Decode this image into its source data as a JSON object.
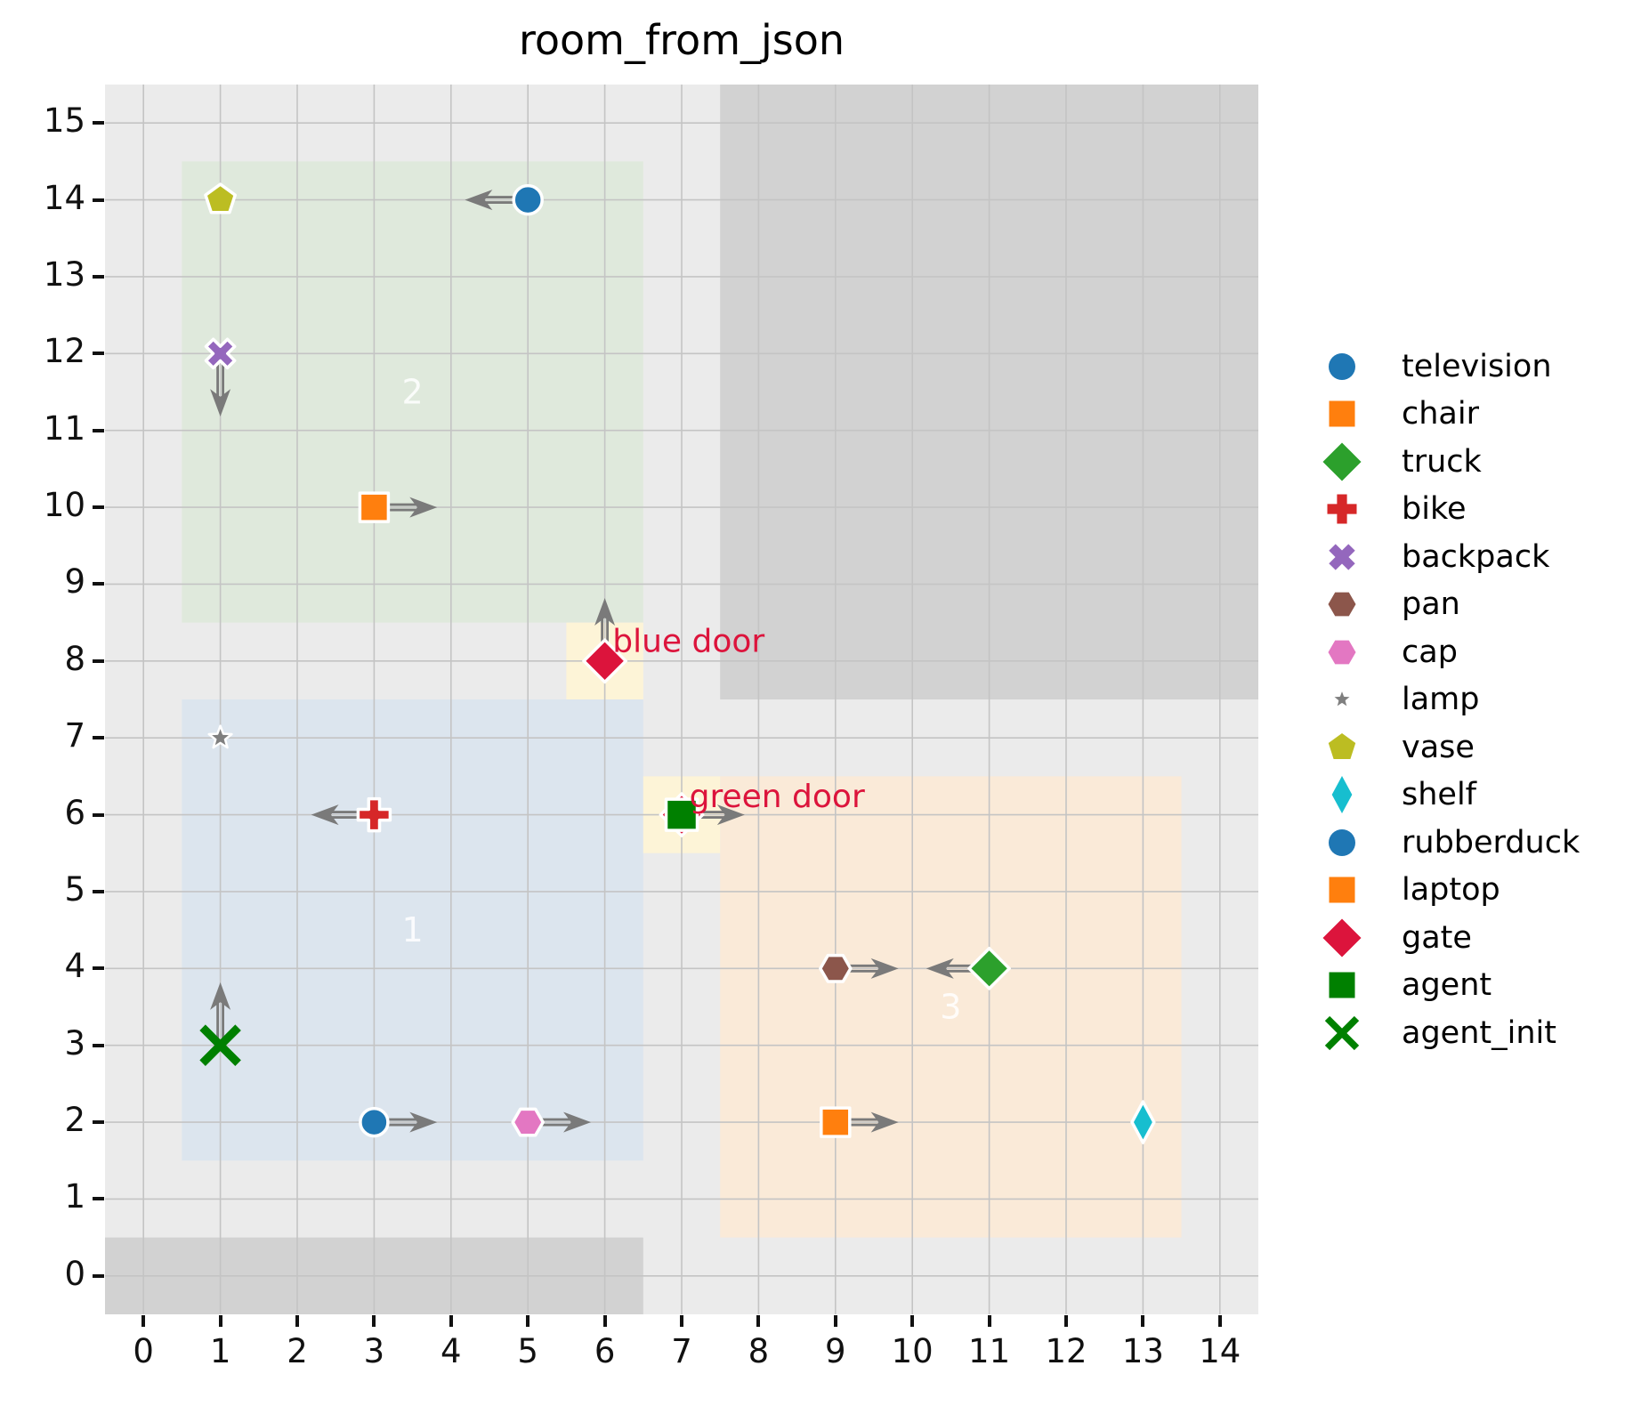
{
  "title": "room_from_json",
  "style": {
    "plot_bg": "#ebebeb",
    "wall_color": "#d2d2d2",
    "grid_color": "#c4c4c4",
    "arrow_color": "#7a7a7a",
    "door_label_color": "#dc143c",
    "room_label_color": "rgba(255,255,255,0.85)",
    "tick_color": "#111111"
  },
  "chart_data": {
    "type": "scatter",
    "title": "room_from_json",
    "xlim": [
      -0.5,
      14.5
    ],
    "ylim": [
      -0.5,
      15.5
    ],
    "x_ticks": [
      0,
      1,
      2,
      3,
      4,
      5,
      6,
      7,
      8,
      9,
      10,
      11,
      12,
      13,
      14
    ],
    "y_ticks": [
      0,
      1,
      2,
      3,
      4,
      5,
      6,
      7,
      8,
      9,
      10,
      11,
      12,
      13,
      14,
      15
    ],
    "grid": true,
    "legend_position": "right",
    "regions": [
      {
        "name": "wall-bottom-left",
        "x0": -0.5,
        "y0": -0.5,
        "x1": 6.5,
        "y1": 0.5,
        "color": "#d2d2d2"
      },
      {
        "name": "wall-top-right",
        "x0": 7.5,
        "y0": 7.5,
        "x1": 14.5,
        "y1": 15.5,
        "color": "#d2d2d2"
      },
      {
        "name": "room-2",
        "x0": 0.5,
        "y0": 8.5,
        "x1": 6.5,
        "y1": 14.5,
        "color": "#dfe9dc",
        "label": "2",
        "label_x": 3.5,
        "label_y": 11.5
      },
      {
        "name": "room-1",
        "x0": 0.5,
        "y0": 1.5,
        "x1": 6.5,
        "y1": 7.5,
        "color": "#dce5ee",
        "label": "1",
        "label_x": 3.5,
        "label_y": 4.5
      },
      {
        "name": "room-3",
        "x0": 7.5,
        "y0": 0.5,
        "x1": 13.5,
        "y1": 6.5,
        "color": "#faead8",
        "label": "3",
        "label_x": 10.5,
        "label_y": 3.5
      },
      {
        "name": "door-highlight-blue",
        "x0": 5.5,
        "y0": 7.5,
        "x1": 6.5,
        "y1": 8.5,
        "color": "#fdf4d7"
      },
      {
        "name": "door-highlight-green",
        "x0": 6.5,
        "y0": 5.5,
        "x1": 7.5,
        "y1": 6.5,
        "color": "#fdf4d7"
      }
    ],
    "points": [
      {
        "name": "vase",
        "x": 1,
        "y": 14,
        "marker": "pentagon",
        "color": "#bcbd22",
        "size": 35
      },
      {
        "name": "television",
        "x": 5,
        "y": 14,
        "marker": "circle",
        "color": "#1f77b4",
        "size": 32,
        "arrow": "left"
      },
      {
        "name": "backpack",
        "x": 1,
        "y": 12,
        "marker": "x_thick",
        "color": "#9467bd",
        "size": 34,
        "arrow": "down"
      },
      {
        "name": "chair",
        "x": 3,
        "y": 10,
        "marker": "square",
        "color": "#ff7f0e",
        "size": 32,
        "arrow": "right"
      },
      {
        "name": "gate",
        "x": 6,
        "y": 8,
        "marker": "diamond",
        "color": "#dc143c",
        "size": 45,
        "arrow": "up"
      },
      {
        "name": "lamp",
        "x": 1,
        "y": 7,
        "marker": "star",
        "color": "#7f7f7f",
        "size": 27
      },
      {
        "name": "bike",
        "x": 3,
        "y": 6,
        "marker": "plus",
        "color": "#d62728",
        "size": 36,
        "arrow": "left"
      },
      {
        "name": "gate",
        "x": 7,
        "y": 6,
        "marker": "diamond",
        "color": "#dc143c",
        "size": 45
      },
      {
        "name": "agent",
        "x": 7,
        "y": 6,
        "marker": "square",
        "color": "#008000",
        "size": 35,
        "arrow": "right"
      },
      {
        "name": "agent_init",
        "x": 1,
        "y": 3,
        "marker": "x_line",
        "color": "#008000",
        "size": 40,
        "arrow": "up"
      },
      {
        "name": "rubberduck",
        "x": 3,
        "y": 2,
        "marker": "circle",
        "color": "#1f77b4",
        "size": 31,
        "arrow": "right"
      },
      {
        "name": "cap",
        "x": 5,
        "y": 2,
        "marker": "hexagon",
        "color": "#e377c2",
        "size": 34,
        "arrow": "right"
      },
      {
        "name": "pan",
        "x": 9,
        "y": 4,
        "marker": "hexagon",
        "color": "#8c564b",
        "size": 34,
        "arrow": "right"
      },
      {
        "name": "truck",
        "x": 11,
        "y": 4,
        "marker": "diamond",
        "color": "#2ca02c",
        "size": 43,
        "arrow": "left"
      },
      {
        "name": "laptop",
        "x": 9,
        "y": 2,
        "marker": "square",
        "color": "#ff7f0e",
        "size": 32,
        "arrow": "right"
      },
      {
        "name": "shelf",
        "x": 13,
        "y": 2,
        "marker": "thin_diamond",
        "color": "#17becf",
        "size": 46
      }
    ],
    "annotations": [
      {
        "text": "blue door",
        "x": 6.1,
        "y": 8.12,
        "color": "#dc143c"
      },
      {
        "text": "green door",
        "x": 7.1,
        "y": 6.1,
        "color": "#dc143c"
      }
    ],
    "legend": [
      {
        "label": "television",
        "marker": "circle",
        "color": "#1f77b4",
        "size": 30
      },
      {
        "label": "chair",
        "marker": "square",
        "color": "#ff7f0e",
        "size": 29
      },
      {
        "label": "truck",
        "marker": "diamond",
        "color": "#2ca02c",
        "size": 41
      },
      {
        "label": "bike",
        "marker": "plus",
        "color": "#d62728",
        "size": 33
      },
      {
        "label": "backpack",
        "marker": "x_thick",
        "color": "#9467bd",
        "size": 31
      },
      {
        "label": "pan",
        "marker": "hexagon",
        "color": "#8c564b",
        "size": 31
      },
      {
        "label": "cap",
        "marker": "hexagon",
        "color": "#e377c2",
        "size": 31
      },
      {
        "label": "lamp",
        "marker": "star",
        "color": "#7f7f7f",
        "size": 25
      },
      {
        "label": "vase",
        "marker": "pentagon",
        "color": "#bcbd22",
        "size": 32
      },
      {
        "label": "shelf",
        "marker": "thin_diamond",
        "color": "#17becf",
        "size": 42
      },
      {
        "label": "rubberduck",
        "marker": "circle",
        "color": "#1f77b4",
        "size": 30
      },
      {
        "label": "laptop",
        "marker": "square",
        "color": "#ff7f0e",
        "size": 29
      },
      {
        "label": "gate",
        "marker": "diamond",
        "color": "#dc143c",
        "size": 41
      },
      {
        "label": "agent",
        "marker": "square",
        "color": "#008000",
        "size": 29
      },
      {
        "label": "agent_init",
        "marker": "x_line",
        "color": "#008000",
        "size": 33
      }
    ]
  }
}
